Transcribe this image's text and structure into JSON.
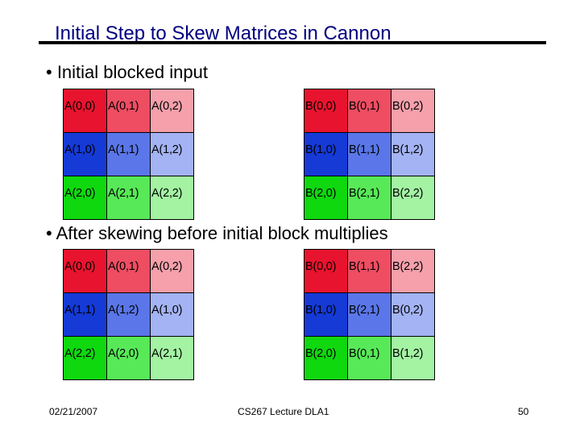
{
  "slide": {
    "title": "Initial Step to Skew Matrices in Cannon",
    "bullet1": "• Initial blocked input",
    "bullet2": "• After skewing before initial block multiplies"
  },
  "colors": {
    "row0": [
      "#e8132e",
      "#ee4d62",
      "#f5a0ab"
    ],
    "row1": [
      "#153ad6",
      "#5a76e8",
      "#a3b3f3"
    ],
    "row2": [
      "#0fd80f",
      "#57e957",
      "#a3f3a3"
    ]
  },
  "initial_A": [
    [
      "A(0,0)",
      "A(0,1)",
      "A(0,2)"
    ],
    [
      "A(1,0)",
      "A(1,1)",
      "A(1,2)"
    ],
    [
      "A(2,0)",
      "A(2,1)",
      "A(2,2)"
    ]
  ],
  "initial_B": [
    [
      "B(0,0)",
      "B(0,1)",
      "B(0,2)"
    ],
    [
      "B(1,0)",
      "B(1,1)",
      "B(1,2)"
    ],
    [
      "B(2,0)",
      "B(2,1)",
      "B(2,2)"
    ]
  ],
  "skewed_A": [
    [
      "A(0,0)",
      "A(0,1)",
      "A(0,2)"
    ],
    [
      "A(1,1)",
      "A(1,2)",
      "A(1,0)"
    ],
    [
      "A(2,2)",
      "A(2,0)",
      "A(2,1)"
    ]
  ],
  "skewed_B": [
    [
      "B(0,0)",
      "B(1,1)",
      "B(2,2)"
    ],
    [
      "B(1,0)",
      "B(2,1)",
      "B(0,2)"
    ],
    [
      "B(2,0)",
      "B(0,1)",
      "B(1,2)"
    ]
  ],
  "footer": {
    "date": "02/21/2007",
    "course": "CS267 Lecture DLA1",
    "page": "50"
  }
}
